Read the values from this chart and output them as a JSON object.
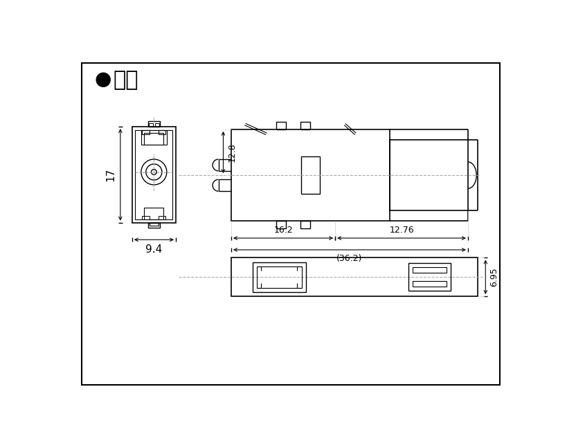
{
  "title_text": "寸法",
  "bg_color": "#ffffff",
  "line_color": "#000000",
  "dim_color": "#888888",
  "dimensions": {
    "height_17": "17",
    "width_9_4": "9.4",
    "height_12_8": "12.8",
    "width_16_2": "16.2",
    "width_12_76": "12.76",
    "total_36_2": "(36.2)",
    "height_6_95": "6.95"
  }
}
